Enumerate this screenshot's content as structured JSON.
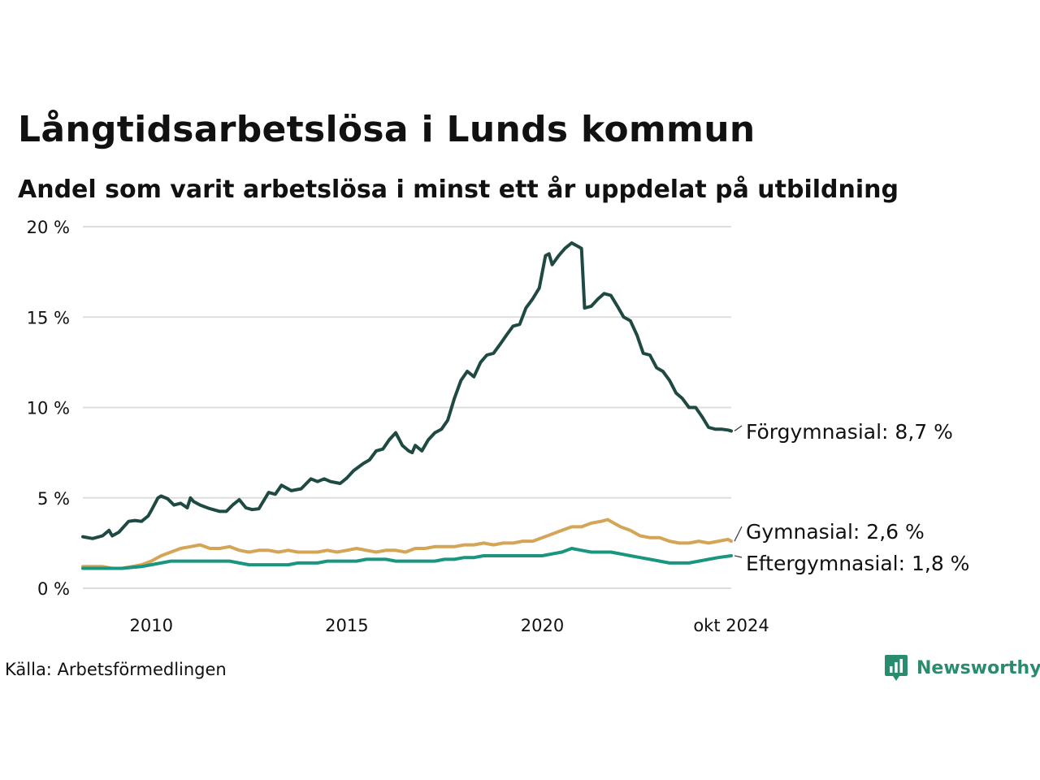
{
  "header": {
    "title": "Långtidsarbetslösa i Lunds kommun",
    "subtitle": "Andel som varit arbetslösa i minst ett år uppdelat på utbildning"
  },
  "footer": {
    "source": "Källa: Arbetsförmedlingen",
    "brand": "Newsworthy",
    "brand_icon": "newsworthy-logo-icon"
  },
  "colors": {
    "forgymnasial": "#1f4a44",
    "gymnasial": "#d4a556",
    "eftergymnasial": "#1a9580",
    "grid": "#dddddd",
    "brand": "#2a8c6e"
  },
  "chart_data": {
    "type": "line",
    "x_unit": "year (decimal)",
    "xlim": [
      2008.25,
      2024.83
    ],
    "ylim": [
      0,
      20
    ],
    "grid": "horizontal",
    "y_ticks": [
      {
        "value": 0,
        "label": "0 %"
      },
      {
        "value": 5,
        "label": "5 %"
      },
      {
        "value": 10,
        "label": "10 %"
      },
      {
        "value": 15,
        "label": "15 %"
      },
      {
        "value": 20,
        "label": "20 %"
      }
    ],
    "x_ticks": [
      {
        "value": 2010,
        "label": "2010"
      },
      {
        "value": 2015,
        "label": "2015"
      },
      {
        "value": 2020,
        "label": "2020"
      },
      {
        "value": 2024.83,
        "label": "okt 2024"
      }
    ],
    "series": [
      {
        "key": "forgymnasial",
        "name": "Förgymnasial",
        "end_label": "Förgymnasial: 8,7 %",
        "x": [
          2008.25,
          2008.5,
          2008.75,
          2008.92,
          2009.0,
          2009.17,
          2009.42,
          2009.58,
          2009.75,
          2009.92,
          2010.0,
          2010.17,
          2010.25,
          2010.42,
          2010.58,
          2010.75,
          2010.92,
          2011.0,
          2011.08,
          2011.25,
          2011.5,
          2011.75,
          2011.92,
          2012.08,
          2012.25,
          2012.42,
          2012.58,
          2012.75,
          2013.0,
          2013.17,
          2013.33,
          2013.58,
          2013.83,
          2014.08,
          2014.25,
          2014.42,
          2014.58,
          2014.83,
          2015.0,
          2015.17,
          2015.42,
          2015.58,
          2015.75,
          2015.92,
          2016.08,
          2016.25,
          2016.42,
          2016.58,
          2016.67,
          2016.75,
          2016.92,
          2017.08,
          2017.25,
          2017.42,
          2017.58,
          2017.75,
          2017.92,
          2018.08,
          2018.25,
          2018.42,
          2018.58,
          2018.75,
          2018.92,
          2019.08,
          2019.25,
          2019.42,
          2019.58,
          2019.75,
          2019.92,
          2020.08,
          2020.17,
          2020.25,
          2020.42,
          2020.58,
          2020.75,
          2020.92,
          2021.0,
          2021.08,
          2021.25,
          2021.42,
          2021.58,
          2021.75,
          2021.92,
          2022.08,
          2022.25,
          2022.42,
          2022.58,
          2022.75,
          2022.92,
          2023.08,
          2023.25,
          2023.42,
          2023.58,
          2023.75,
          2023.92,
          2024.08,
          2024.25,
          2024.42,
          2024.58,
          2024.75,
          2024.83
        ],
        "y": [
          2.85,
          2.75,
          2.9,
          3.2,
          2.9,
          3.1,
          3.7,
          3.75,
          3.7,
          4.0,
          4.3,
          5.0,
          5.1,
          4.95,
          4.6,
          4.7,
          4.45,
          5.0,
          4.8,
          4.6,
          4.4,
          4.25,
          4.25,
          4.6,
          4.9,
          4.45,
          4.35,
          4.4,
          5.3,
          5.2,
          5.7,
          5.4,
          5.5,
          6.05,
          5.9,
          6.05,
          5.9,
          5.8,
          6.1,
          6.5,
          6.9,
          7.1,
          7.6,
          7.7,
          8.2,
          8.6,
          7.9,
          7.6,
          7.5,
          7.9,
          7.6,
          8.2,
          8.6,
          8.8,
          9.3,
          10.5,
          11.5,
          12.0,
          11.7,
          12.5,
          12.9,
          13.0,
          13.5,
          14.0,
          14.5,
          14.6,
          15.5,
          16.0,
          16.6,
          18.4,
          18.5,
          17.9,
          18.4,
          18.8,
          19.1,
          18.9,
          18.8,
          15.5,
          15.6,
          16.0,
          16.3,
          16.2,
          15.6,
          15.0,
          14.8,
          14.0,
          13.0,
          12.9,
          12.2,
          12.0,
          11.5,
          10.8,
          10.5,
          10.0,
          10.0,
          9.5,
          8.9,
          8.8,
          8.8,
          8.75,
          8.7
        ]
      },
      {
        "key": "gymnasial",
        "name": "Gymnasial",
        "end_label": "Gymnasial: 2,6 %",
        "x": [
          2008.25,
          2008.75,
          2009.0,
          2009.25,
          2009.5,
          2009.75,
          2010.0,
          2010.25,
          2010.5,
          2010.75,
          2011.0,
          2011.25,
          2011.5,
          2011.75,
          2012.0,
          2012.25,
          2012.5,
          2012.75,
          2013.0,
          2013.25,
          2013.5,
          2013.75,
          2014.0,
          2014.25,
          2014.5,
          2014.75,
          2015.0,
          2015.25,
          2015.5,
          2015.75,
          2016.0,
          2016.25,
          2016.5,
          2016.75,
          2017.0,
          2017.25,
          2017.5,
          2017.75,
          2018.0,
          2018.25,
          2018.5,
          2018.75,
          2019.0,
          2019.25,
          2019.5,
          2019.75,
          2020.0,
          2020.25,
          2020.5,
          2020.75,
          2021.0,
          2021.25,
          2021.5,
          2021.67,
          2021.83,
          2022.0,
          2022.25,
          2022.5,
          2022.75,
          2023.0,
          2023.25,
          2023.5,
          2023.75,
          2024.0,
          2024.25,
          2024.5,
          2024.75,
          2024.83
        ],
        "y": [
          1.2,
          1.2,
          1.1,
          1.1,
          1.2,
          1.3,
          1.5,
          1.8,
          2.0,
          2.2,
          2.3,
          2.4,
          2.2,
          2.2,
          2.3,
          2.1,
          2.0,
          2.1,
          2.1,
          2.0,
          2.1,
          2.0,
          2.0,
          2.0,
          2.1,
          2.0,
          2.1,
          2.2,
          2.1,
          2.0,
          2.1,
          2.1,
          2.0,
          2.2,
          2.2,
          2.3,
          2.3,
          2.3,
          2.4,
          2.4,
          2.5,
          2.4,
          2.5,
          2.5,
          2.6,
          2.6,
          2.8,
          3.0,
          3.2,
          3.4,
          3.4,
          3.6,
          3.7,
          3.8,
          3.6,
          3.4,
          3.2,
          2.9,
          2.8,
          2.8,
          2.6,
          2.5,
          2.5,
          2.6,
          2.5,
          2.6,
          2.7,
          2.6
        ]
      },
      {
        "key": "eftergymnasial",
        "name": "Eftergymnasial",
        "end_label": "Eftergymnasial: 1,8 %",
        "x": [
          2008.25,
          2008.75,
          2009.0,
          2009.25,
          2009.5,
          2009.75,
          2010.0,
          2010.25,
          2010.5,
          2010.75,
          2011.0,
          2011.25,
          2011.5,
          2011.75,
          2012.0,
          2012.25,
          2012.5,
          2012.75,
          2013.0,
          2013.25,
          2013.5,
          2013.75,
          2014.0,
          2014.25,
          2014.5,
          2014.75,
          2015.0,
          2015.25,
          2015.5,
          2015.75,
          2016.0,
          2016.25,
          2016.5,
          2016.75,
          2017.0,
          2017.25,
          2017.5,
          2017.75,
          2018.0,
          2018.25,
          2018.5,
          2018.75,
          2019.0,
          2019.25,
          2019.5,
          2019.75,
          2020.0,
          2020.25,
          2020.5,
          2020.75,
          2021.0,
          2021.25,
          2021.5,
          2021.75,
          2022.0,
          2022.25,
          2022.5,
          2022.75,
          2023.0,
          2023.25,
          2023.5,
          2023.75,
          2024.0,
          2024.25,
          2024.5,
          2024.83
        ],
        "y": [
          1.1,
          1.1,
          1.1,
          1.1,
          1.15,
          1.2,
          1.3,
          1.4,
          1.5,
          1.5,
          1.5,
          1.5,
          1.5,
          1.5,
          1.5,
          1.4,
          1.3,
          1.3,
          1.3,
          1.3,
          1.3,
          1.4,
          1.4,
          1.4,
          1.5,
          1.5,
          1.5,
          1.5,
          1.6,
          1.6,
          1.6,
          1.5,
          1.5,
          1.5,
          1.5,
          1.5,
          1.6,
          1.6,
          1.7,
          1.7,
          1.8,
          1.8,
          1.8,
          1.8,
          1.8,
          1.8,
          1.8,
          1.9,
          2.0,
          2.2,
          2.1,
          2.0,
          2.0,
          2.0,
          1.9,
          1.8,
          1.7,
          1.6,
          1.5,
          1.4,
          1.4,
          1.4,
          1.5,
          1.6,
          1.7,
          1.8
        ]
      }
    ]
  }
}
